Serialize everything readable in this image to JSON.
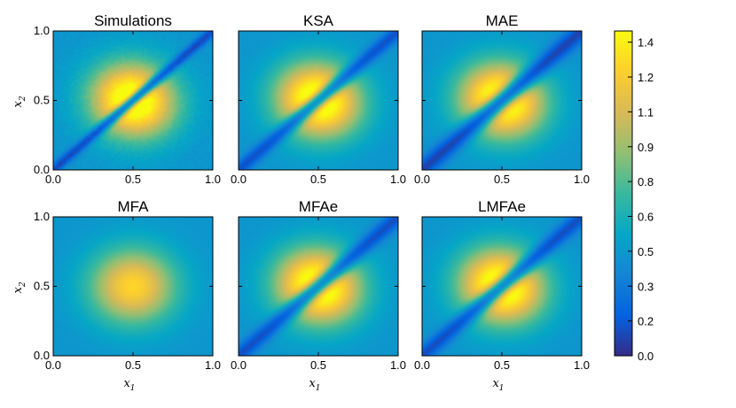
{
  "chart_data": {
    "type": "heatmap",
    "description_units": "normalized field value over unit square",
    "colorbar": {
      "min": 0.0,
      "max": 1.45,
      "ticks": [
        0.0,
        0.2,
        0.3,
        0.5,
        0.6,
        0.8,
        0.9,
        1.1,
        1.2,
        1.4
      ],
      "tick_labels": [
        "0.0",
        "0.2",
        "0.3",
        "0.5",
        "0.6",
        "0.8",
        "0.9",
        "1.1",
        "1.2",
        "1.4"
      ],
      "colors": [
        "#352a87",
        "#0363e1",
        "#1485d4",
        "#06a7c6",
        "#38b99e",
        "#92bf73",
        "#d9ba56",
        "#fcce2e",
        "#f9fb0e"
      ]
    },
    "axes": {
      "x_ticks": [
        "0.0",
        "0.5",
        "1.0"
      ],
      "y_ticks": [
        "0.0",
        "0.5",
        "1.0"
      ],
      "xlim": [
        0.0,
        1.0
      ],
      "ylim": [
        0.0,
        1.0
      ],
      "xlabel_main": "x",
      "xlabel_sub": "1",
      "ylabel_main": "x",
      "ylabel_sub": "2"
    },
    "panels": [
      {
        "title": "Simulations",
        "diag_depth": 0.78,
        "diag_width": 0.025,
        "noise": true,
        "show_ylabel": true,
        "show_xlabel": false
      },
      {
        "title": "KSA",
        "diag_depth": 0.72,
        "diag_width": 0.035,
        "noise": false,
        "show_ylabel": false,
        "show_xlabel": false
      },
      {
        "title": "MAE",
        "diag_depth": 0.82,
        "diag_width": 0.045,
        "noise": false,
        "show_ylabel": false,
        "show_xlabel": false
      },
      {
        "title": "MFA",
        "diag_depth": 0.0,
        "diag_width": 0.04,
        "noise": false,
        "show_ylabel": true,
        "show_xlabel": true
      },
      {
        "title": "MFAe",
        "diag_depth": 0.74,
        "diag_width": 0.04,
        "noise": false,
        "show_ylabel": false,
        "show_xlabel": true
      },
      {
        "title": "LMFAe",
        "diag_depth": 0.75,
        "diag_width": 0.04,
        "noise": false,
        "show_ylabel": false,
        "show_xlabel": true
      }
    ]
  }
}
